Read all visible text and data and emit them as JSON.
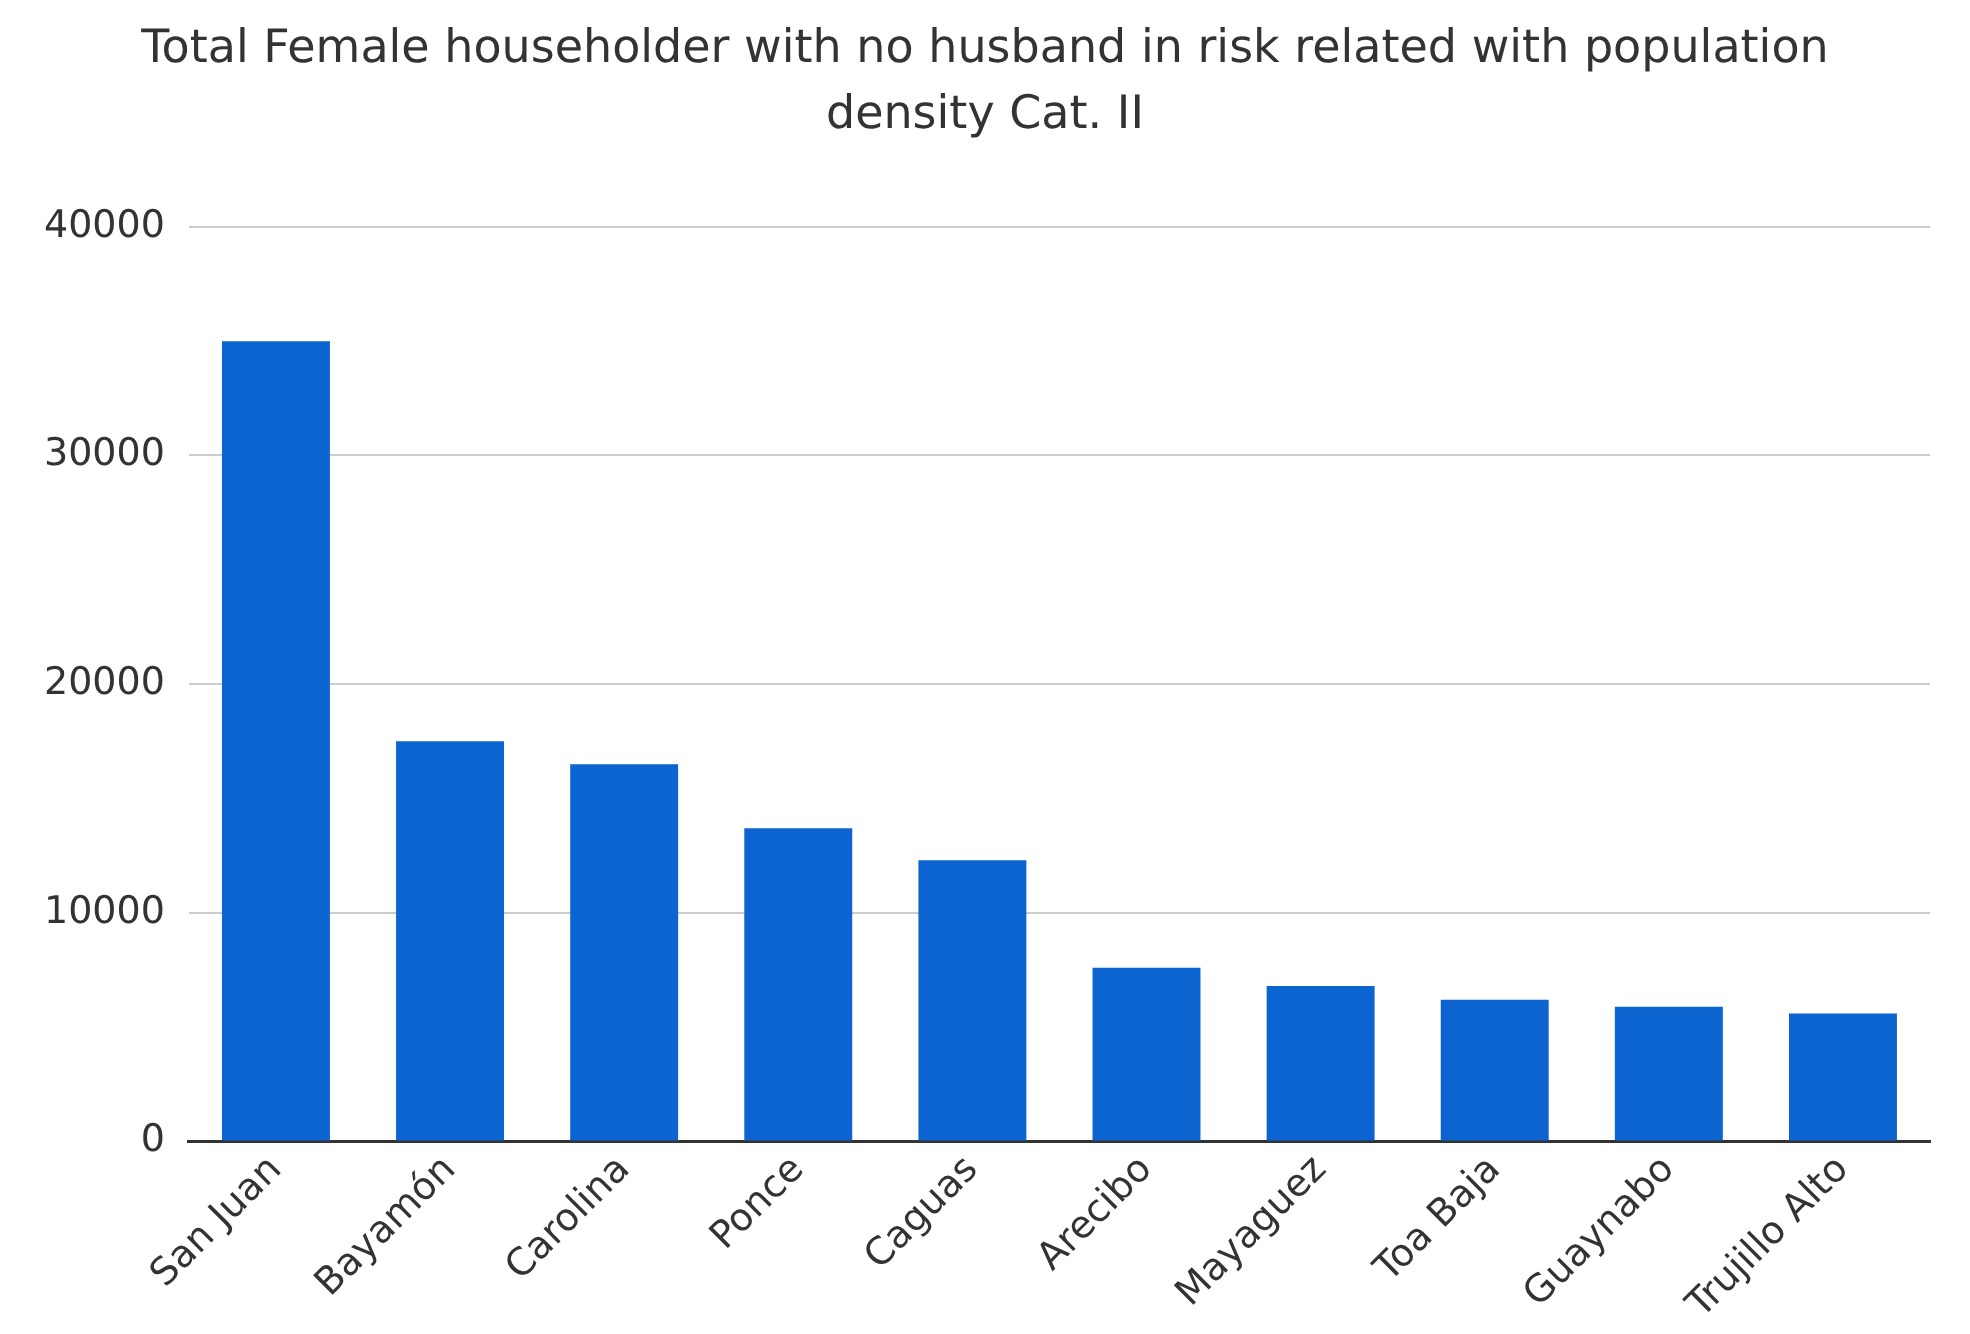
{
  "chart_data": {
    "type": "bar",
    "title": "Total Female householder with no husband in risk related with population density Cat. II",
    "categories": [
      "San Juan",
      "Bayamón",
      "Carolina",
      "Ponce",
      "Caguas",
      "Arecibo",
      "Mayaguez",
      "Toa Baja",
      "Guaynabo",
      "Trujillo Alto"
    ],
    "values": [
      35000,
      17500,
      16500,
      13700,
      12300,
      7600,
      6800,
      6200,
      5900,
      5600
    ],
    "color": "#0b64d0",
    "ylim": [
      0,
      40000
    ],
    "yticks": [
      0,
      10000,
      20000,
      30000,
      40000
    ],
    "grid": "y",
    "legend": false
  }
}
